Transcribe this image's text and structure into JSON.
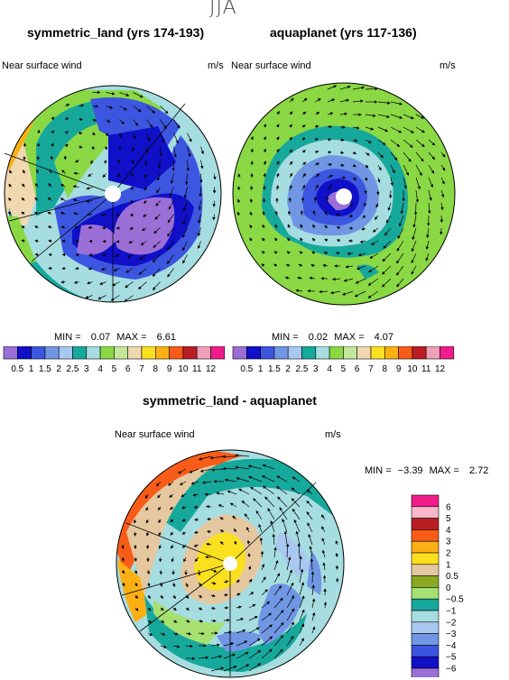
{
  "suptitle": "JJA",
  "panels": [
    {
      "title": "symmetric_land (yrs 174-193)",
      "left_label": "Near surface wind",
      "units": "m/s",
      "min_label": "MIN =",
      "min": "0.07",
      "max_label": "MAX =",
      "max": "6.61"
    },
    {
      "title": "aquaplanet (yrs 117-136)",
      "left_label": "Near surface wind",
      "units": "m/s",
      "min_label": "MIN =",
      "min": "0.02",
      "max_label": "MAX =",
      "max": "4.07"
    },
    {
      "title": "symmetric_land - aquaplanet",
      "left_label": "Near surface wind",
      "units": "m/s",
      "min_label": "MIN =",
      "min": "−3.39",
      "max_label": "MAX =",
      "max": "2.72"
    }
  ],
  "colorbar_top": {
    "labels": [
      "0.5",
      "1",
      "1.5",
      "2",
      "2.5",
      "3",
      "4",
      "5",
      "6",
      "7",
      "8",
      "9",
      "10",
      "11",
      "12"
    ],
    "colors": [
      "#9b6fd6",
      "#1010c8",
      "#3d56e0",
      "#7096e4",
      "#a8c8f0",
      "#17a89c",
      "#a6dde0",
      "#8ad844",
      "#c2e69a",
      "#f0d8b0",
      "#fbe020",
      "#fcb014",
      "#f85c18",
      "#b81e24",
      "#f0a0b8",
      "#f01c8c"
    ]
  },
  "colorbar_diff": {
    "labels": [
      "6",
      "5",
      "4",
      "3",
      "2",
      "1",
      "0.5",
      "0",
      "−0.5",
      "−1",
      "−2",
      "−3",
      "−4",
      "−5",
      "−6"
    ],
    "colors": [
      "#f01c8c",
      "#f8b8c8",
      "#b81e24",
      "#f85c18",
      "#fcb014",
      "#fbe020",
      "#e6c8a0",
      "#8aa820",
      "#a6e070",
      "#17a89c",
      "#a6dde0",
      "#a8c8f0",
      "#7096e4",
      "#3d56e0",
      "#1010c8",
      "#9b6fd6"
    ]
  },
  "chart_data": [
    {
      "type": "heatmap",
      "title": "symmetric_land (yrs 174-193)",
      "subtitle": "Near surface wind",
      "units": "m/s",
      "min": 0.07,
      "max": 6.61,
      "levels": [
        0.5,
        1,
        1.5,
        2,
        2.5,
        3,
        4,
        5,
        6,
        7,
        8,
        9,
        10,
        11,
        12
      ]
    },
    {
      "type": "heatmap",
      "title": "aquaplanet (yrs 117-136)",
      "subtitle": "Near surface wind",
      "units": "m/s",
      "min": 0.02,
      "max": 4.07,
      "levels": [
        0.5,
        1,
        1.5,
        2,
        2.5,
        3,
        4,
        5,
        6,
        7,
        8,
        9,
        10,
        11,
        12
      ]
    },
    {
      "type": "heatmap",
      "title": "symmetric_land - aquaplanet",
      "subtitle": "Near surface wind",
      "units": "m/s",
      "min": -3.39,
      "max": 2.72,
      "levels": [
        -6,
        -5,
        -4,
        -3,
        -2,
        -1,
        -0.5,
        0,
        0.5,
        1,
        2,
        3,
        4,
        5,
        6
      ]
    }
  ]
}
